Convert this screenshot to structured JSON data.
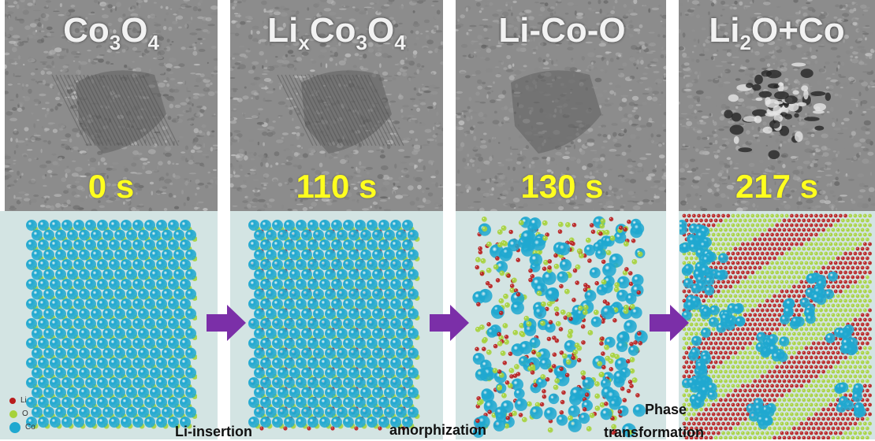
{
  "panels": [
    {
      "title_main": "Co",
      "title_sub1": "3",
      "title_mid": "O",
      "title_sub2": "4",
      "time": "0 s"
    },
    {
      "title_pre": "Li",
      "title_subx": "x",
      "title_main": "Co",
      "title_sub1": "3",
      "title_mid": "O",
      "title_sub2": "4",
      "time": "110 s"
    },
    {
      "title": "Li-Co-O",
      "time": "130 s"
    },
    {
      "title_pre": "Li",
      "title_sub": "2",
      "title_rest": "O+Co",
      "time": "217 s"
    }
  ],
  "legend": [
    {
      "label": "Li",
      "color": "#b81c1c"
    },
    {
      "label": "O",
      "color": "#a6d23a"
    },
    {
      "label": "Co",
      "color": "#1fa8d0"
    }
  ],
  "captions": {
    "step1": "Li-insertion",
    "step2": "amorphization",
    "step3_line1": "Phase",
    "step3_line2": "transformation"
  },
  "colors": {
    "li": "#b81c1c",
    "o": "#a6d23a",
    "co": "#1fa8d0",
    "arrow": "#7b2fa8",
    "time": "#ffff1e"
  }
}
